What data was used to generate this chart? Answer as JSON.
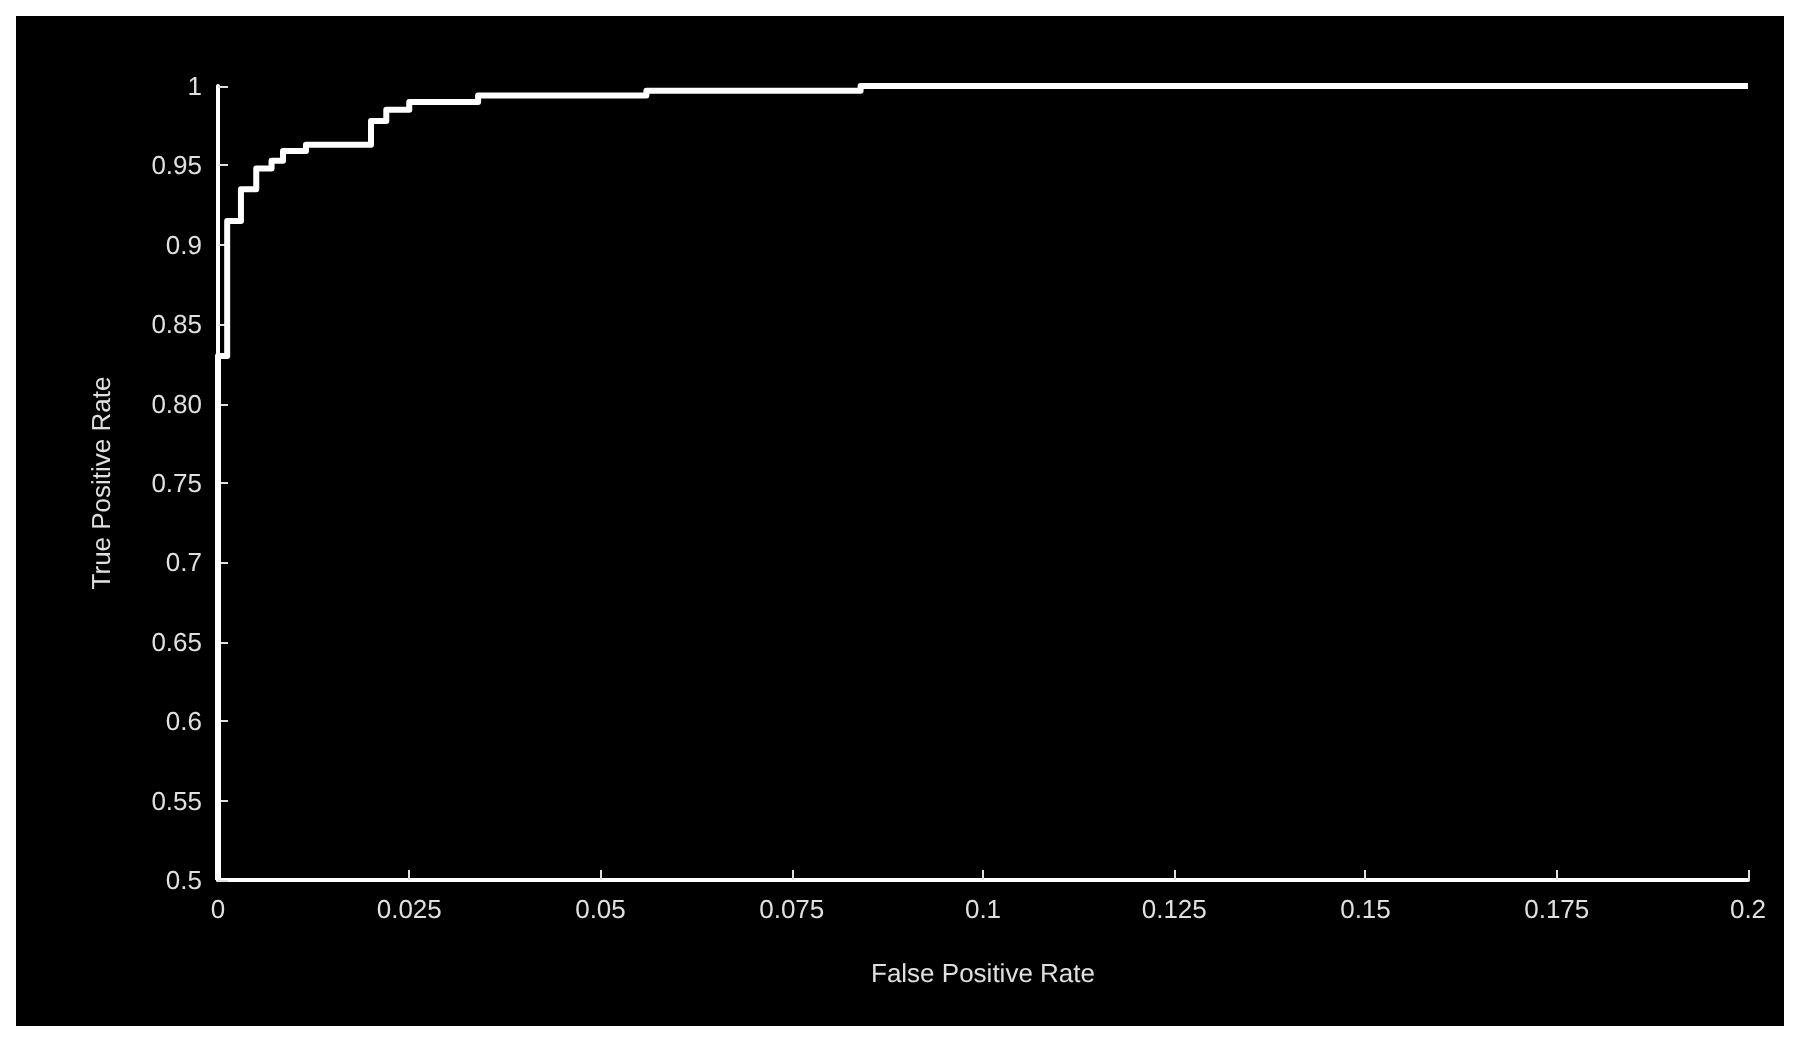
{
  "chart_data": {
    "type": "step",
    "xlabel": "False Positive Rate",
    "ylabel": "True Positive Rate",
    "series": [
      {
        "color": "#ffffff",
        "x": [
          0,
          0,
          0.0012,
          0.003,
          0.005,
          0.007,
          0.0085,
          0.0115,
          0.02,
          0.022,
          0.025,
          0.034,
          0.056,
          0.084,
          0.2
        ],
        "values": [
          0.5,
          0.83,
          0.915,
          0.935,
          0.948,
          0.953,
          0.959,
          0.963,
          0.978,
          0.985,
          0.99,
          0.994,
          0.997,
          1,
          1
        ]
      }
    ],
    "xlim": [
      0,
      0.2
    ],
    "xticks": [
      0,
      0.025,
      0.05,
      0.075,
      0.1,
      0.125,
      0.15,
      0.175,
      0.2
    ],
    "ylim": [
      0.5,
      1
    ],
    "yticks": [
      0.5,
      0.55,
      0.6,
      0.65,
      0.7,
      0.75,
      {
        "value": 0.8,
        "label": "0.80"
      },
      0.85,
      0.9,
      0.95,
      1
    ],
    "grid": false,
    "marker": "none",
    "line_style": "solid"
  }
}
